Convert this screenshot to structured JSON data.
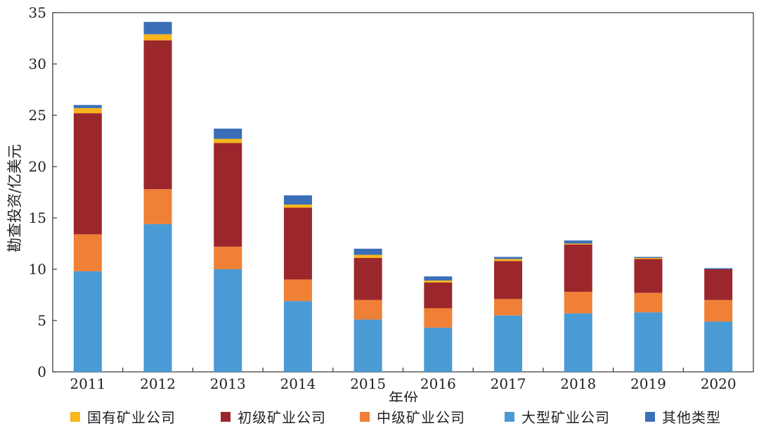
{
  "chart_data": {
    "type": "bar",
    "stacked": true,
    "xlabel": "年份",
    "ylabel": "勘查投资/亿美元",
    "ylim": [
      0,
      35
    ],
    "yticks": [
      0,
      5,
      10,
      15,
      20,
      25,
      30,
      35
    ],
    "categories": [
      "2011",
      "2012",
      "2013",
      "2014",
      "2015",
      "2016",
      "2017",
      "2018",
      "2019",
      "2020"
    ],
    "series": [
      {
        "name": "大型矿业公司",
        "color": "#4a9ad6",
        "values": [
          9.8,
          14.4,
          10.0,
          6.9,
          5.1,
          4.3,
          5.5,
          5.7,
          5.8,
          4.9
        ]
      },
      {
        "name": "中级矿业公司",
        "color": "#f08035",
        "values": [
          3.6,
          3.4,
          2.2,
          2.1,
          1.9,
          1.9,
          1.6,
          2.1,
          1.9,
          2.1
        ]
      },
      {
        "name": "初级矿业公司",
        "color": "#9b272c",
        "values": [
          11.8,
          14.5,
          10.1,
          7.0,
          4.1,
          2.5,
          3.7,
          4.6,
          3.3,
          3.0
        ]
      },
      {
        "name": "国有矿业公司",
        "color": "#f9b51b",
        "values": [
          0.5,
          0.6,
          0.4,
          0.3,
          0.3,
          0.2,
          0.2,
          0.1,
          0.1,
          0.0
        ]
      },
      {
        "name": "其他类型",
        "color": "#3a6fb8",
        "values": [
          0.3,
          1.2,
          1.0,
          0.9,
          0.6,
          0.4,
          0.2,
          0.3,
          0.1,
          0.1
        ]
      }
    ],
    "legend_order": [
      "国有矿业公司",
      "初级矿业公司",
      "中级矿业公司",
      "大型矿业公司",
      "其他类型"
    ],
    "legend_position": "bottom",
    "grid": false
  }
}
